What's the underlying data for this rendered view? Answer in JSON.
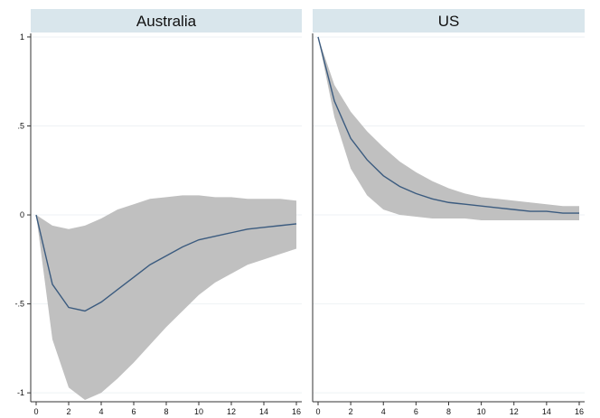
{
  "chart_data": {
    "type": "line",
    "y_tick_labels": [
      "1",
      ".5",
      "0",
      "-.5",
      "-1"
    ],
    "y_ticks": [
      1,
      0.5,
      0,
      -0.5,
      -1
    ],
    "x_tick_labels": [
      "0",
      "2",
      "4",
      "6",
      "8",
      "10",
      "12",
      "14",
      "16"
    ],
    "x_ticks": [
      0,
      2,
      4,
      6,
      8,
      10,
      12,
      14,
      16
    ],
    "xlim": [
      0,
      16
    ],
    "ylim": [
      -1.05,
      1.02
    ],
    "grid": true,
    "colors": {
      "line": "#3b5b7f",
      "band": "#c0c0c0",
      "strip": "#d9e6ec",
      "grid": "#eef2f4"
    },
    "panels": [
      {
        "title": "Australia",
        "x": [
          0,
          1,
          2,
          3,
          4,
          5,
          6,
          7,
          8,
          9,
          10,
          11,
          12,
          13,
          14,
          15,
          16
        ],
        "y": [
          0,
          -0.39,
          -0.52,
          -0.54,
          -0.49,
          -0.42,
          -0.35,
          -0.28,
          -0.23,
          -0.18,
          -0.14,
          -0.12,
          -0.1,
          -0.08,
          -0.07,
          -0.06,
          -0.05
        ],
        "lower": [
          0,
          -0.7,
          -0.97,
          -1.04,
          -1.0,
          -0.92,
          -0.83,
          -0.73,
          -0.63,
          -0.54,
          -0.45,
          -0.38,
          -0.33,
          -0.28,
          -0.25,
          -0.22,
          -0.19
        ],
        "upper": [
          0,
          -0.06,
          -0.08,
          -0.06,
          -0.02,
          0.03,
          0.06,
          0.09,
          0.1,
          0.11,
          0.11,
          0.1,
          0.1,
          0.09,
          0.09,
          0.09,
          0.08
        ]
      },
      {
        "title": "US",
        "x": [
          0,
          1,
          2,
          3,
          4,
          5,
          6,
          7,
          8,
          9,
          10,
          11,
          12,
          13,
          14,
          15,
          16
        ],
        "y": [
          1,
          0.64,
          0.43,
          0.31,
          0.22,
          0.16,
          0.12,
          0.09,
          0.07,
          0.06,
          0.05,
          0.04,
          0.03,
          0.02,
          0.02,
          0.01,
          0.01
        ],
        "lower": [
          1,
          0.55,
          0.26,
          0.11,
          0.03,
          0.0,
          -0.01,
          -0.02,
          -0.02,
          -0.02,
          -0.03,
          -0.03,
          -0.03,
          -0.03,
          -0.03,
          -0.03,
          -0.03
        ],
        "upper": [
          1,
          0.73,
          0.58,
          0.47,
          0.38,
          0.3,
          0.24,
          0.19,
          0.15,
          0.12,
          0.1,
          0.09,
          0.08,
          0.07,
          0.06,
          0.05,
          0.05
        ]
      }
    ]
  }
}
